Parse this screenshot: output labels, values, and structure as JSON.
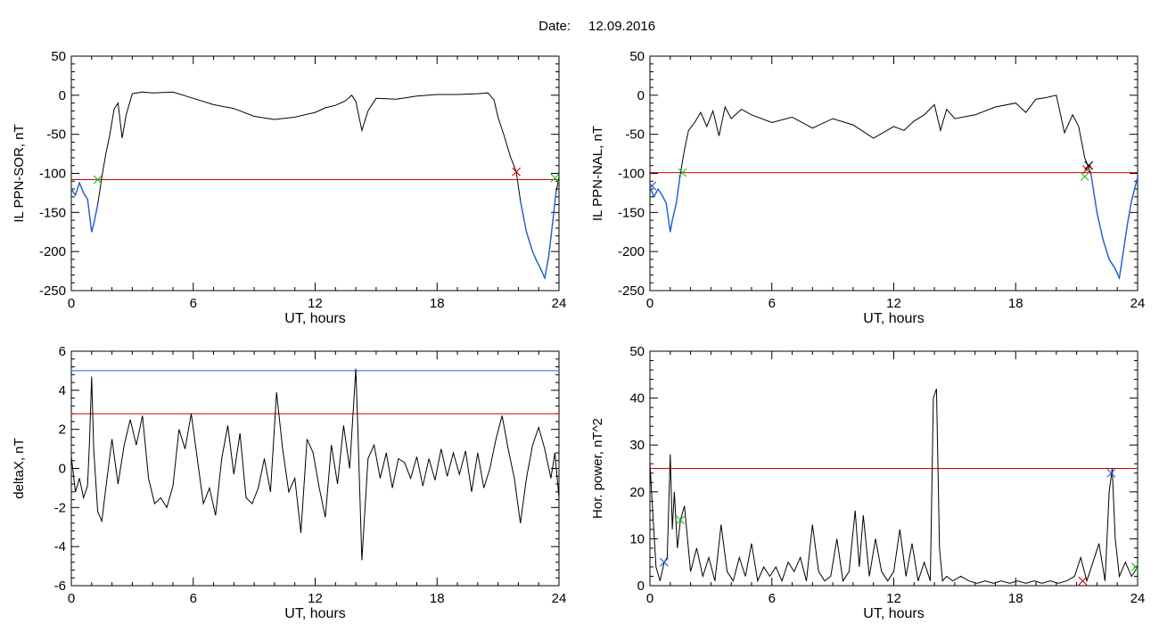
{
  "figure": {
    "date_label": "Date:",
    "date_value": "12.09.2016"
  },
  "chart_data": [
    {
      "type": "line",
      "xlabel": "UT, hours",
      "ylabel": "IL PPN-SOR, nT",
      "xlim": [
        0,
        24
      ],
      "ylim": [
        -250,
        50
      ],
      "xticks": [
        "0",
        "6",
        "12",
        "18",
        "24"
      ],
      "yticks": [
        "50",
        "0",
        "-50",
        "-100",
        "-150",
        "-200",
        "-250"
      ],
      "thresholds": [
        {
          "value": -108,
          "color": "#d40000"
        }
      ],
      "highlight": {
        "color": "#1f5fd8",
        "below": -108
      },
      "markers": [
        {
          "x": 1.3,
          "y": -108,
          "color": "#22c122"
        },
        {
          "x": 21.9,
          "y": -98,
          "color": "#d40000"
        },
        {
          "x": 23.8,
          "y": -106,
          "color": "#22c122"
        }
      ],
      "series": [
        {
          "x": [
            0,
            0.2,
            0.4,
            0.6,
            0.8,
            1.0,
            1.1,
            1.3,
            1.5,
            1.7,
            1.9,
            2.1,
            2.3,
            2.5,
            2.7,
            3.0,
            3.5,
            4,
            5,
            6,
            7,
            8,
            9,
            10,
            11,
            12,
            12.5,
            13,
            13.5,
            13.8,
            14.0,
            14.3,
            14.6,
            15,
            16,
            17,
            18,
            19,
            20,
            20.5,
            20.8,
            21.0,
            21.3,
            21.6,
            21.9,
            22.1,
            22.4,
            22.7,
            22.9,
            23.1,
            23.3,
            23.5,
            23.7,
            23.85,
            24
          ],
          "values": [
            -120,
            -128,
            -112,
            -125,
            -133,
            -175,
            -165,
            -140,
            -105,
            -75,
            -50,
            -18,
            -10,
            -55,
            -25,
            2,
            4,
            3,
            4,
            -4,
            -12,
            -17,
            -27,
            -31,
            -28,
            -22,
            -16,
            -13,
            -7,
            0,
            -8,
            -45,
            -20,
            -4,
            -5,
            -1,
            1,
            1,
            2,
            3,
            -6,
            -28,
            -52,
            -78,
            -98,
            -135,
            -175,
            -200,
            -212,
            -222,
            -234,
            -205,
            -160,
            -125,
            -105
          ]
        }
      ]
    },
    {
      "type": "line",
      "xlabel": "UT, hours",
      "ylabel": "IL PPN-NAL, nT",
      "xlim": [
        0,
        24
      ],
      "ylim": [
        -250,
        50
      ],
      "xticks": [
        "0",
        "6",
        "12",
        "18",
        "24"
      ],
      "yticks": [
        "50",
        "0",
        "-50",
        "-100",
        "-150",
        "-200",
        "-250"
      ],
      "thresholds": [
        {
          "value": -99,
          "color": "#d40000"
        }
      ],
      "highlight": {
        "color": "#1f5fd8",
        "below": -99
      },
      "markers": [
        {
          "x": 0.1,
          "y": -116,
          "color": "#1f5fd8"
        },
        {
          "x": 1.6,
          "y": -99,
          "color": "#22c122"
        },
        {
          "x": 21.5,
          "y": -95,
          "color": "#d40000"
        },
        {
          "x": 21.6,
          "y": -90,
          "color": "#000000"
        },
        {
          "x": 21.4,
          "y": -104,
          "color": "#22c122"
        }
      ],
      "series": [
        {
          "x": [
            0,
            0.2,
            0.4,
            0.6,
            0.8,
            1.0,
            1.1,
            1.3,
            1.5,
            1.7,
            1.9,
            2.2,
            2.5,
            2.8,
            3.1,
            3.4,
            3.7,
            4.0,
            4.5,
            5,
            6,
            7,
            8,
            9,
            10,
            11,
            12,
            12.5,
            13,
            13.5,
            14,
            14.3,
            14.6,
            15,
            16,
            17,
            18,
            18.5,
            19,
            19.5,
            20,
            20.4,
            20.8,
            21.1,
            21.4,
            21.7,
            22.0,
            22.3,
            22.6,
            22.9,
            23.1,
            23.3,
            23.5,
            23.7,
            23.9,
            24
          ],
          "values": [
            -118,
            -130,
            -120,
            -128,
            -138,
            -175,
            -160,
            -138,
            -100,
            -70,
            -45,
            -35,
            -22,
            -40,
            -20,
            -52,
            -15,
            -30,
            -18,
            -25,
            -35,
            -28,
            -42,
            -30,
            -38,
            -55,
            -40,
            -45,
            -33,
            -25,
            -12,
            -45,
            -18,
            -30,
            -25,
            -15,
            -10,
            -22,
            -5,
            -3,
            0,
            -48,
            -25,
            -40,
            -80,
            -100,
            -150,
            -185,
            -210,
            -222,
            -234,
            -200,
            -165,
            -135,
            -115,
            -105
          ]
        }
      ]
    },
    {
      "type": "line",
      "xlabel": "UT, hours",
      "ylabel": "deltaX, nT",
      "xlim": [
        0,
        24
      ],
      "ylim": [
        -6,
        6
      ],
      "xticks": [
        "0",
        "6",
        "12",
        "18",
        "24"
      ],
      "yticks": [
        "6",
        "4",
        "2",
        "0",
        "-2",
        "-4",
        "-6"
      ],
      "thresholds": [
        {
          "value": 5.0,
          "color": "#1f5fd8"
        },
        {
          "value": 2.8,
          "color": "#d40000"
        }
      ],
      "markers": [],
      "series": [
        {
          "x": [
            0,
            0.2,
            0.4,
            0.6,
            0.8,
            0.9,
            1.0,
            1.1,
            1.3,
            1.5,
            1.7,
            2.0,
            2.3,
            2.6,
            2.9,
            3.2,
            3.5,
            3.8,
            4.1,
            4.4,
            4.7,
            5.0,
            5.3,
            5.6,
            5.9,
            6.2,
            6.5,
            6.8,
            7.1,
            7.4,
            7.7,
            8.0,
            8.3,
            8.6,
            8.9,
            9.2,
            9.5,
            9.8,
            10.1,
            10.4,
            10.7,
            11.0,
            11.3,
            11.6,
            11.9,
            12.2,
            12.5,
            12.8,
            13.1,
            13.4,
            13.7,
            14.0,
            14.1,
            14.3,
            14.6,
            14.9,
            15.2,
            15.5,
            15.8,
            16.1,
            16.4,
            16.7,
            17.0,
            17.3,
            17.6,
            17.9,
            18.2,
            18.5,
            18.8,
            19.1,
            19.4,
            19.7,
            20.0,
            20.3,
            20.6,
            20.9,
            21.2,
            21.5,
            21.8,
            22.1,
            22.4,
            22.7,
            23.0,
            23.3,
            23.6,
            23.8,
            24
          ],
          "values": [
            0.6,
            -1.2,
            -0.5,
            -1.5,
            -0.9,
            1.5,
            4.7,
            1.0,
            -2.2,
            -2.7,
            -1.0,
            1.5,
            -0.8,
            1.2,
            2.5,
            1.2,
            2.7,
            -0.5,
            -1.8,
            -1.5,
            -2.0,
            -0.9,
            2.0,
            1.0,
            2.8,
            0.5,
            -1.8,
            -1.0,
            -2.4,
            0.5,
            2.2,
            -0.3,
            1.8,
            -1.5,
            -1.8,
            -1.0,
            0.5,
            -1.2,
            3.9,
            1.0,
            -1.2,
            -0.5,
            -3.3,
            1.5,
            0.8,
            -1.0,
            -2.5,
            1.2,
            -0.8,
            2.2,
            0.0,
            5.1,
            2.0,
            -4.7,
            0.5,
            1.2,
            -0.5,
            0.8,
            -1.0,
            0.5,
            0.3,
            -0.5,
            0.6,
            -0.9,
            0.5,
            -0.6,
            1.0,
            -0.4,
            0.8,
            -0.3,
            0.9,
            -1.2,
            0.8,
            -1.0,
            0.0,
            1.5,
            2.7,
            1.0,
            -0.5,
            -2.8,
            -0.5,
            1.2,
            2.1,
            1.0,
            -0.5,
            0.8,
            -1.5
          ]
        }
      ]
    },
    {
      "type": "line",
      "xlabel": "UT, hours",
      "ylabel": "Hor. power, nT^2",
      "xlim": [
        0,
        24
      ],
      "ylim": [
        0,
        50
      ],
      "xticks": [
        "0",
        "6",
        "12",
        "18",
        "24"
      ],
      "yticks": [
        "50",
        "40",
        "30",
        "20",
        "10",
        "0"
      ],
      "thresholds": [
        {
          "value": 25,
          "color": "#d40000"
        }
      ],
      "markers": [
        {
          "x": 0.7,
          "y": 5,
          "color": "#1f5fd8"
        },
        {
          "x": 1.5,
          "y": 14,
          "color": "#22c122"
        },
        {
          "x": 21.3,
          "y": 1,
          "color": "#d40000"
        },
        {
          "x": 22.7,
          "y": 24,
          "color": "#1f5fd8"
        },
        {
          "x": 23.9,
          "y": 4,
          "color": "#22c122"
        }
      ],
      "series": [
        {
          "x": [
            0,
            0.3,
            0.5,
            0.7,
            0.85,
            1.0,
            1.1,
            1.2,
            1.35,
            1.5,
            1.7,
            2.0,
            2.3,
            2.6,
            2.9,
            3.2,
            3.5,
            3.8,
            4.1,
            4.4,
            4.7,
            5.0,
            5.3,
            5.6,
            5.9,
            6.2,
            6.5,
            6.8,
            7.1,
            7.4,
            7.7,
            8.0,
            8.3,
            8.6,
            8.9,
            9.2,
            9.5,
            9.8,
            10.1,
            10.3,
            10.5,
            10.8,
            11.1,
            11.4,
            11.7,
            12.0,
            12.3,
            12.6,
            12.9,
            13.2,
            13.5,
            13.8,
            13.95,
            14.1,
            14.25,
            14.4,
            14.6,
            14.9,
            15.3,
            15.7,
            16.1,
            16.5,
            16.9,
            17.3,
            17.7,
            18.1,
            18.5,
            18.9,
            19.3,
            19.7,
            20.1,
            20.5,
            20.9,
            21.2,
            21.5,
            21.8,
            22.1,
            22.4,
            22.6,
            22.75,
            22.9,
            23.1,
            23.4,
            23.7,
            24
          ],
          "values": [
            26,
            4,
            1,
            5,
            6,
            28,
            12,
            20,
            8,
            14,
            17,
            3,
            8,
            2,
            6,
            1,
            13,
            3,
            1,
            6,
            2,
            9,
            1,
            4,
            2,
            4,
            1,
            5,
            3,
            6,
            1,
            13,
            3,
            1,
            2,
            10,
            1,
            3,
            16,
            4,
            15,
            2,
            10,
            3,
            1,
            3,
            12,
            2,
            9,
            1,
            5,
            1,
            40,
            42,
            8,
            1,
            2,
            1,
            2,
            1,
            0.5,
            1,
            0.5,
            1,
            0.5,
            1,
            0.5,
            1,
            0.5,
            1,
            0.5,
            1,
            2,
            6,
            1,
            5,
            9,
            1,
            20,
            25,
            10,
            2,
            5,
            2,
            4
          ]
        }
      ]
    }
  ]
}
